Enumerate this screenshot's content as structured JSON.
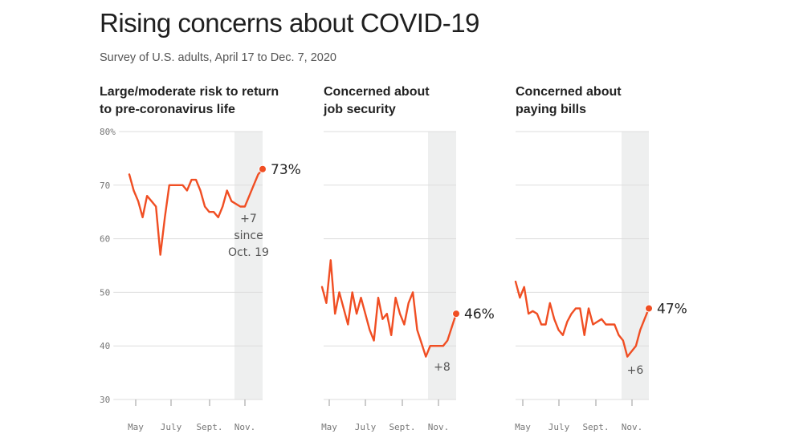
{
  "title": "Rising concerns about COVID-19",
  "subtitle": "Survey of U.S. adults, April 17 to Dec. 7, 2020",
  "colors": {
    "line": "#f04e23",
    "shade": "#eeefef",
    "grid": "#dddddd"
  },
  "chart_data": [
    {
      "type": "line",
      "title": "Large/moderate risk to return to pre-coronavirus life",
      "title_lines": [
        "Large/moderate risk to return",
        "to pre-coronavirus life"
      ],
      "x_ticks": [
        "May",
        "July",
        "Sept.",
        "Nov."
      ],
      "y_ticks": [
        "80%",
        "70",
        "60",
        "50",
        "40",
        "30"
      ],
      "ylim": [
        30,
        80
      ],
      "shaded_from": "Oct. 19",
      "values": [
        72,
        69,
        67,
        64,
        68,
        67,
        66,
        57,
        64,
        70,
        70,
        70,
        70,
        69,
        71,
        71,
        69,
        66,
        65,
        65,
        64,
        66,
        69,
        67,
        66.5,
        66,
        66,
        68,
        70,
        72,
        73
      ],
      "end_label": "73%",
      "annotation": [
        "+7",
        "since",
        "Oct. 19"
      ]
    },
    {
      "type": "line",
      "title": "Concerned about job security",
      "title_lines": [
        "Concerned about",
        "job security"
      ],
      "x_ticks": [
        "May",
        "July",
        "Sept.",
        "Nov."
      ],
      "ylim": [
        30,
        80
      ],
      "values": [
        51,
        48,
        56,
        46,
        50,
        47,
        44,
        50,
        46,
        49,
        46,
        43,
        41,
        49,
        45,
        46,
        42,
        49,
        46,
        44,
        48,
        50,
        43,
        40.5,
        38,
        40,
        40,
        40,
        40,
        41,
        43.5,
        46
      ],
      "end_label": "46%",
      "annotation": [
        "+8"
      ]
    },
    {
      "type": "line",
      "title": "Concerned about paying bills",
      "title_lines": [
        "Concerned about",
        "paying bills"
      ],
      "x_ticks": [
        "May",
        "July",
        "Sept.",
        "Nov."
      ],
      "ylim": [
        30,
        80
      ],
      "values": [
        52,
        49,
        51,
        46,
        46.5,
        46,
        44,
        44,
        48,
        45,
        43,
        42,
        44.5,
        46,
        47,
        47,
        42,
        47,
        44,
        44.5,
        45,
        44,
        44,
        44,
        42,
        41,
        38,
        39,
        40,
        43,
        45,
        47
      ],
      "end_label": "47%",
      "annotation": [
        "+6"
      ]
    }
  ]
}
